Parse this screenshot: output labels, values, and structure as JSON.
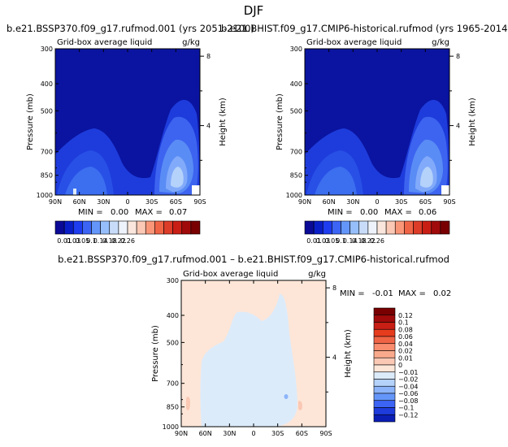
{
  "page_title": "DJF",
  "chart_data": [
    {
      "type": "heatmap",
      "title": "b.e21.BSSP370.f09_g17.rufmod.001 (yrs 2051-2100)",
      "subtitle_left": "Grid-box average liquid",
      "subtitle_right": "g/kg",
      "xlabel": "",
      "ylabel": "Pressure (mb)",
      "ylabel_right": "Height (km)",
      "x_ticks": [
        "90N",
        "60N",
        "30N",
        "0",
        "30S",
        "60S",
        "90S"
      ],
      "y_ticks": [
        "300",
        "400",
        "500",
        "700",
        "850",
        "1000"
      ],
      "y2_ticks": [
        "8",
        "4"
      ],
      "stats": {
        "min_label": "MIN =",
        "min": "0.00",
        "max_label": "MAX =",
        "max": "0.07"
      },
      "field_color": "#0a14a0"
    },
    {
      "type": "heatmap",
      "title": "b.e21.BHIST.f09_g17.CMIP6-historical.rufmod (yrs 1965-2014)",
      "subtitle_left": "Grid-box average liquid",
      "subtitle_right": "g/kg",
      "xlabel": "",
      "ylabel": "Pressure (mb)",
      "ylabel_right": "Height (km)",
      "x_ticks": [
        "90N",
        "60N",
        "30N",
        "0",
        "30S",
        "60S",
        "90S"
      ],
      "y_ticks": [
        "300",
        "400",
        "500",
        "700",
        "850",
        "1000"
      ],
      "y2_ticks": [
        "8",
        "4"
      ],
      "stats": {
        "min_label": "MIN =",
        "min": "0.00",
        "max_label": "MAX =",
        "max": "0.06"
      },
      "field_color": "#0a14a0"
    },
    {
      "type": "heatmap",
      "title": "b.e21.BSSP370.f09_g17.rufmod.001 – b.e21.BHIST.f09_g17.CMIP6-historical.rufmod",
      "subtitle_left": "Grid-box average liquid",
      "subtitle_right": "g/kg",
      "xlabel": "",
      "ylabel": "Pressure (mb)",
      "ylabel_right": "Height (km)",
      "x_ticks": [
        "90N",
        "60N",
        "30N",
        "0",
        "30S",
        "60S",
        "90S"
      ],
      "y_ticks": [
        "300",
        "400",
        "500",
        "700",
        "850",
        "1000"
      ],
      "y2_ticks": [
        "8",
        "4"
      ],
      "stats": {
        "min_label": "MIN =",
        "min": "-0.01",
        "max_label": "MAX =",
        "max": "0.02"
      },
      "field_color": "#fde6d8"
    }
  ],
  "colorbar_abs": {
    "labels": [
      "0.01",
      "0.03",
      "0.05",
      "0.1",
      "0.14",
      "0.18",
      "0.22",
      "0.26"
    ],
    "colors": [
      "#0a0a96",
      "#0a1ec8",
      "#1e3cf0",
      "#3c64f5",
      "#6496fa",
      "#96befa",
      "#c8dcfa",
      "#eef2fa",
      "#fae6dc",
      "#fac8b4",
      "#fa9678",
      "#f06446",
      "#dc3c28",
      "#c81e14",
      "#a00a0a",
      "#780000"
    ]
  },
  "colorbar_diff": {
    "labels": [
      "0.12",
      "0.1",
      "0.08",
      "0.06",
      "0.04",
      "0.02",
      "0.01",
      "0",
      "-0.01",
      "-0.02",
      "-0.04",
      "-0.06",
      "-0.08",
      "-0.1",
      "-0.12"
    ],
    "colors": [
      "#780000",
      "#a00a0a",
      "#c81e14",
      "#e63c1e",
      "#f06446",
      "#fa8c6e",
      "#faaa8c",
      "#fac8b4",
      "#fde6d8",
      "#dcebfa",
      "#b4d2fa",
      "#8cb4fa",
      "#6496fa",
      "#3c64f5",
      "#1e3cdc",
      "#0a1eb4"
    ]
  }
}
